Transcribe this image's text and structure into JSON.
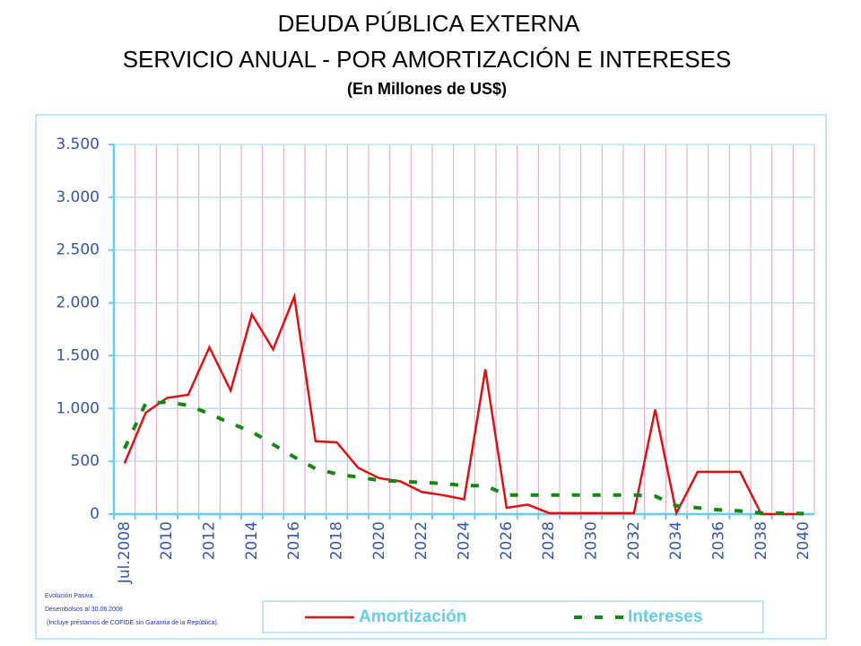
{
  "chart_data": {
    "type": "line",
    "title": [
      "DEUDA PÚBLICA EXTERNA",
      "SERVICIO ANUAL - POR AMORTIZACIÓN E INTERESES"
    ],
    "subtitle": "(En Millones de US$)",
    "categories": [
      "Jul.2008",
      null,
      "2010",
      null,
      "2012",
      null,
      "2014",
      null,
      "2016",
      null,
      "2018",
      null,
      "2020",
      null,
      "2022",
      null,
      "2024",
      null,
      "2026",
      null,
      "2028",
      null,
      "2030",
      null,
      "2032",
      null,
      "2034",
      null,
      "2036",
      null,
      "2038",
      null,
      "2040"
    ],
    "series": [
      {
        "name": "Amortización",
        "color": "#dd1111",
        "line_style": "solid",
        "values": [
          480,
          960,
          1100,
          1130,
          1580,
          1170,
          1890,
          1560,
          2060,
          690,
          680,
          440,
          340,
          310,
          210,
          180,
          140,
          1370,
          60,
          90,
          10,
          10,
          10,
          10,
          10,
          990,
          10,
          400,
          400,
          400,
          0,
          0,
          0
        ]
      },
      {
        "name": "Intereses",
        "color": "#118811",
        "line_style": "dashed",
        "values": [
          620,
          1050,
          1060,
          1030,
          950,
          860,
          780,
          660,
          540,
          430,
          380,
          350,
          320,
          310,
          300,
          290,
          270,
          270,
          180,
          180,
          180,
          180,
          180,
          180,
          180,
          170,
          80,
          60,
          40,
          30,
          10,
          10,
          5
        ]
      }
    ],
    "ylim": [
      0,
      3500
    ],
    "yticks": [
      0,
      500,
      {
        "value": 1000,
        "label": "1.000"
      },
      {
        "value": 1500,
        "label": "1.500"
      },
      {
        "value": 2000,
        "label": "2.000"
      },
      {
        "value": 2500,
        "label": "2.500"
      },
      {
        "value": 3000,
        "label": "3.000"
      },
      {
        "value": 3500,
        "label": "3.500"
      }
    ],
    "grid": true,
    "notes": [
      "Evolución Pasiva.",
      "Desembolsos al 30.06.2008",
      "(Incluye préstamos de COFIDE sin Garantía de la República)."
    ]
  }
}
